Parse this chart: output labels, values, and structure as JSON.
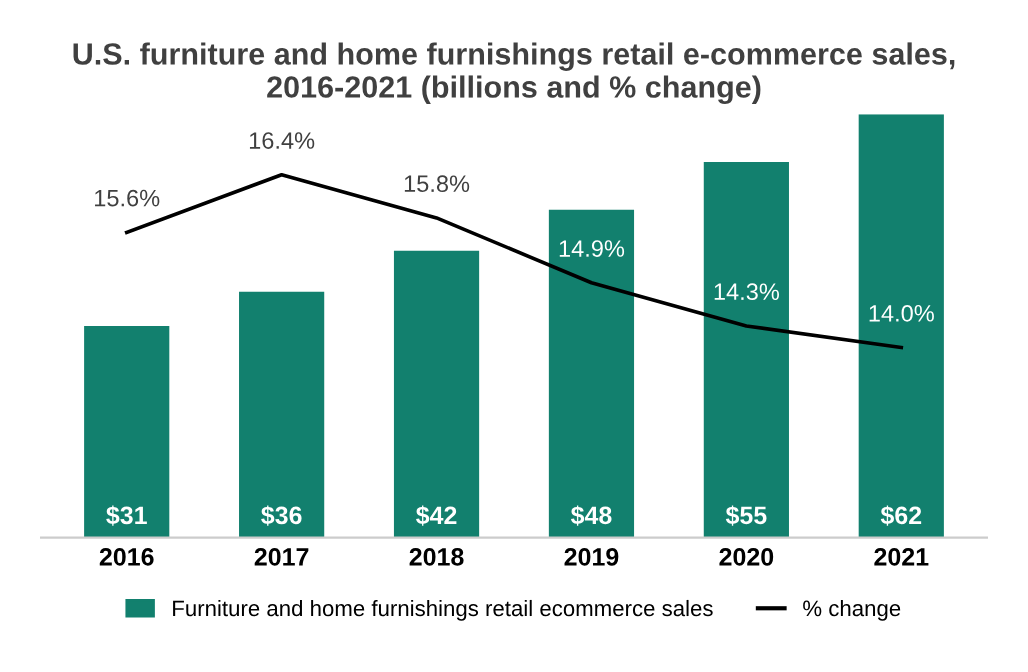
{
  "chart_data": {
    "type": "bar",
    "title": "U.S. furniture and home furnishings retail e-commerce sales,\n2016-2021 (billions and % change)",
    "categories": [
      "2016",
      "2017",
      "2018",
      "2019",
      "2020",
      "2021"
    ],
    "series": [
      {
        "name": "Furniture and home furnishings retail ecommerce sales",
        "color": "#12806e",
        "values": [
          31,
          36,
          42,
          48,
          55,
          62
        ],
        "value_labels": [
          "$31",
          "$36",
          "$42",
          "$48",
          "$55",
          "$62"
        ]
      },
      {
        "name": "% change",
        "type": "line",
        "axis": "y2",
        "color": "#000000",
        "values": [
          15.6,
          16.4,
          15.8,
          14.9,
          14.3,
          14.0
        ],
        "value_labels": [
          "15.6%",
          "16.4%",
          "15.8%",
          "14.9%",
          "14.3%",
          "14.0%"
        ]
      }
    ],
    "legend": "bottom",
    "grid": false,
    "marker": "none",
    "line_style": "solid"
  }
}
